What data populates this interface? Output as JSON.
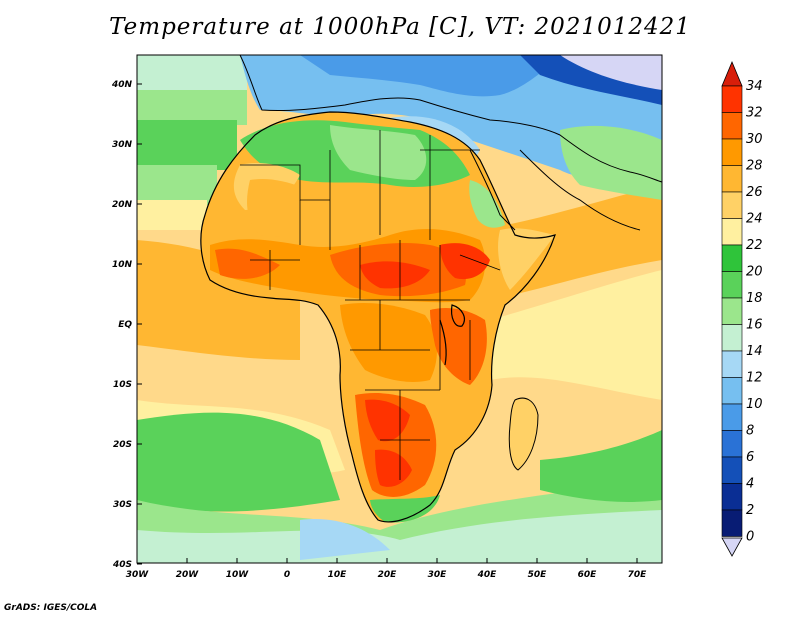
{
  "title": "Temperature at 1000hPa [C], VT: 2021012421",
  "credit": "GrADS: IGES/COLA",
  "axes": {
    "lat_labels": [
      "40N",
      "30N",
      "20N",
      "10N",
      "EQ",
      "10S",
      "20S",
      "30S",
      "40S"
    ],
    "lon_labels": [
      "30W",
      "20W",
      "10W",
      "0",
      "10E",
      "20E",
      "30E",
      "40E",
      "50E",
      "60E",
      "70E"
    ]
  },
  "colorbar": {
    "labels": [
      "34",
      "32",
      "30",
      "28",
      "26",
      "24",
      "22",
      "20",
      "18",
      "16",
      "14",
      "12",
      "10",
      "8",
      "6",
      "4",
      "2",
      "0"
    ],
    "colors": [
      "#ff3300",
      "#ff6600",
      "#ff9900",
      "#ffb732",
      "#ffd166",
      "#fff0a0",
      "#2fc43a",
      "#5ad25a",
      "#9be68c",
      "#c4f0d2",
      "#a6d8f5",
      "#76bff0",
      "#4a9be8",
      "#2a72d6",
      "#1450b8",
      "#0a2e94",
      "#081c74"
    ],
    "top_arrow_color": "#d81e0a",
    "bottom_arrow_color": "#d6d6f5"
  },
  "map": {
    "ocean_color": "#ffd98a",
    "coast_color": "#000000"
  }
}
